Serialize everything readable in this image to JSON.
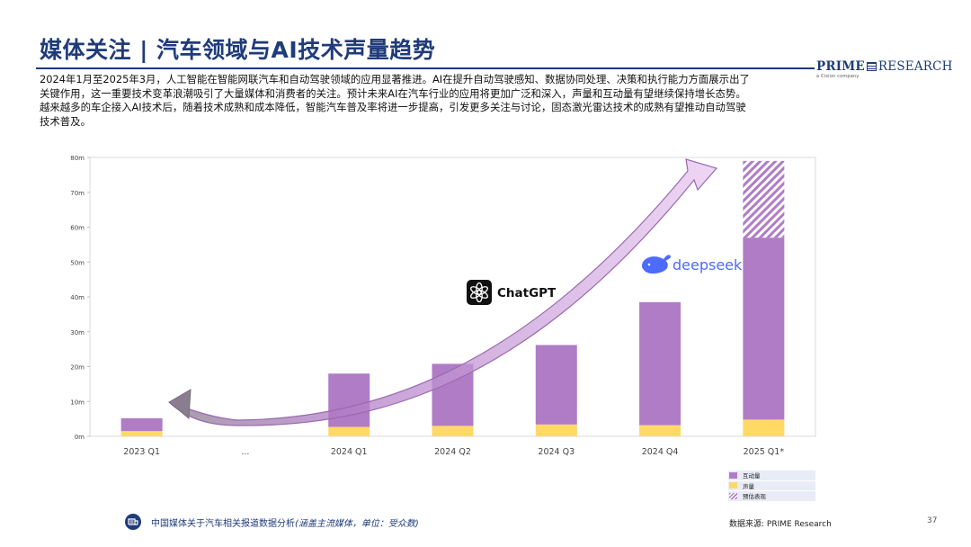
{
  "header": {
    "title": "媒体关注 | 汽车领域与AI技术声量趋势",
    "logo_main": "PRIME",
    "logo_second": "RESEARCH",
    "logo_sub": "a Cision company"
  },
  "intro_lines": [
    "2024年1月至2025年3月，人工智能在智能网联汽车和自动驾驶领域的应用显著推进。AI在提升自动驾驶感知、数据协同处理、决策和执行能力方面展示出了",
    "关键作用，这一重要技术变革浪潮吸引了大量媒体和消费者的关注。预计未来AI在汽车行业的应用将更加广泛和深入，声量和互动量有望继续保持增长态势。",
    "越来越多的车企接入AI技术后，随着技术成熟和成本降低，智能汽车普及率将进一步提高，引发更多关注与讨论，固态激光雷达技术的成熟有望推动自动驾驶",
    "技术普及。"
  ],
  "chart_data": {
    "type": "bar",
    "stacked": true,
    "categories": [
      "2023 Q1",
      "...",
      "2024 Q1",
      "2024 Q2",
      "2024 Q3",
      "2024 Q4",
      "2025 Q1*"
    ],
    "series": [
      {
        "name": "声量",
        "color": "#ffd966",
        "values": [
          1.5,
          null,
          2.7,
          3.0,
          3.4,
          3.2,
          4.8
        ]
      },
      {
        "name": "互动量",
        "color": "#b07cc6",
        "values": [
          3.7,
          null,
          15.3,
          17.8,
          22.8,
          35.3,
          52.2
        ]
      },
      {
        "name": "预估表现",
        "color": "#b07cc6",
        "pattern": "hatched",
        "values": [
          null,
          null,
          null,
          null,
          null,
          null,
          22.0
        ]
      }
    ],
    "ylim": [
      0,
      80
    ],
    "yticks": [
      0,
      10,
      20,
      30,
      40,
      50,
      60,
      70,
      80
    ],
    "ytick_labels": [
      "0m",
      "10m",
      "20m",
      "30m",
      "40m",
      "50m",
      "60m",
      "70m",
      "80m"
    ],
    "grid": false,
    "legend_position": "bottom-right",
    "annotations": [
      {
        "type": "trend-arrow",
        "label": ""
      },
      {
        "type": "logo",
        "label": "ChatGPT"
      },
      {
        "type": "logo",
        "label": "deepseek"
      }
    ]
  },
  "legend": [
    {
      "label": "互动量",
      "color": "#b07cc6",
      "pattern": "solid"
    },
    {
      "label": "声量",
      "color": "#ffd966",
      "pattern": "solid"
    },
    {
      "label": "预估表现",
      "color": "#b07cc6",
      "pattern": "hatched"
    }
  ],
  "footer": {
    "note_main": "中国媒体关于汽车相关报道数据分析",
    "note_italic": "(涵盖主流媒体，单位：受众数)",
    "source": "数据来源: PRIME Research",
    "page": "37"
  },
  "colors": {
    "accent": "#1f3b7a",
    "interaction": "#b07cc6",
    "volume": "#ffd966",
    "deepseek": "#4d6bfe"
  }
}
